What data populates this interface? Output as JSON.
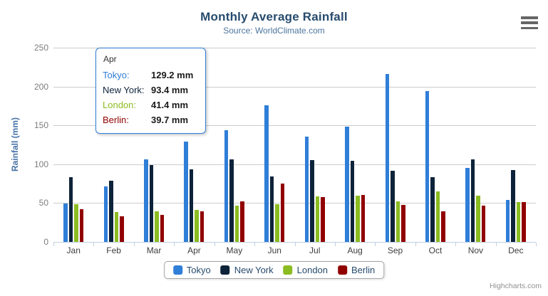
{
  "header": {
    "title": "Monthly Average Rainfall",
    "subtitle": "Source: WorldClimate.com"
  },
  "credits": "Highcharts.com",
  "colors": {
    "axis_line": "#c0d0e0",
    "grid_line": "#cccccc",
    "title_text": "#274b6d",
    "subtitle_text": "#4d759e",
    "yaxis_title_text": "#4572a7",
    "tooltip_border": "#2f7ed8"
  },
  "chart_data": {
    "type": "bar",
    "title": "Monthly Average Rainfall",
    "subtitle": "Source: WorldClimate.com",
    "categories": [
      "Jan",
      "Feb",
      "Mar",
      "Apr",
      "May",
      "Jun",
      "Jul",
      "Aug",
      "Sep",
      "Oct",
      "Nov",
      "Dec"
    ],
    "series": [
      {
        "name": "Tokyo",
        "color": "#2f7ed8",
        "values": [
          49.9,
          71.5,
          106.4,
          129.2,
          144.0,
          176.0,
          135.6,
          148.5,
          216.4,
          194.1,
          95.6,
          54.4
        ]
      },
      {
        "name": "New York",
        "color": "#0d233a",
        "values": [
          83.6,
          78.8,
          98.5,
          93.4,
          106.0,
          84.5,
          105.0,
          104.3,
          91.2,
          83.5,
          106.6,
          92.3
        ]
      },
      {
        "name": "London",
        "color": "#8bbc21",
        "values": [
          48.9,
          38.8,
          39.3,
          41.4,
          47.0,
          48.3,
          59.0,
          59.6,
          52.4,
          65.2,
          59.3,
          51.2
        ]
      },
      {
        "name": "Berlin",
        "color": "#910000",
        "values": [
          42.4,
          33.2,
          34.5,
          39.7,
          52.6,
          75.5,
          57.4,
          60.4,
          47.6,
          39.1,
          46.8,
          51.1
        ]
      }
    ],
    "xlabel": "",
    "ylabel": "Rainfall (mm)",
    "ylim": [
      0,
      250
    ],
    "yticks": [
      0,
      50,
      100,
      150,
      200,
      250
    ],
    "grid": true,
    "legend_position": "bottom"
  },
  "tooltip": {
    "header": "Apr",
    "rows": [
      {
        "label": "Tokyo:",
        "value": "129.2 mm",
        "color": "#2f7ed8"
      },
      {
        "label": "New York:",
        "value": "93.4 mm",
        "color": "#0d233a"
      },
      {
        "label": "London:",
        "value": "41.4 mm",
        "color": "#8bbc21"
      },
      {
        "label": "Berlin:",
        "value": "39.7 mm",
        "color": "#910000"
      }
    ]
  }
}
